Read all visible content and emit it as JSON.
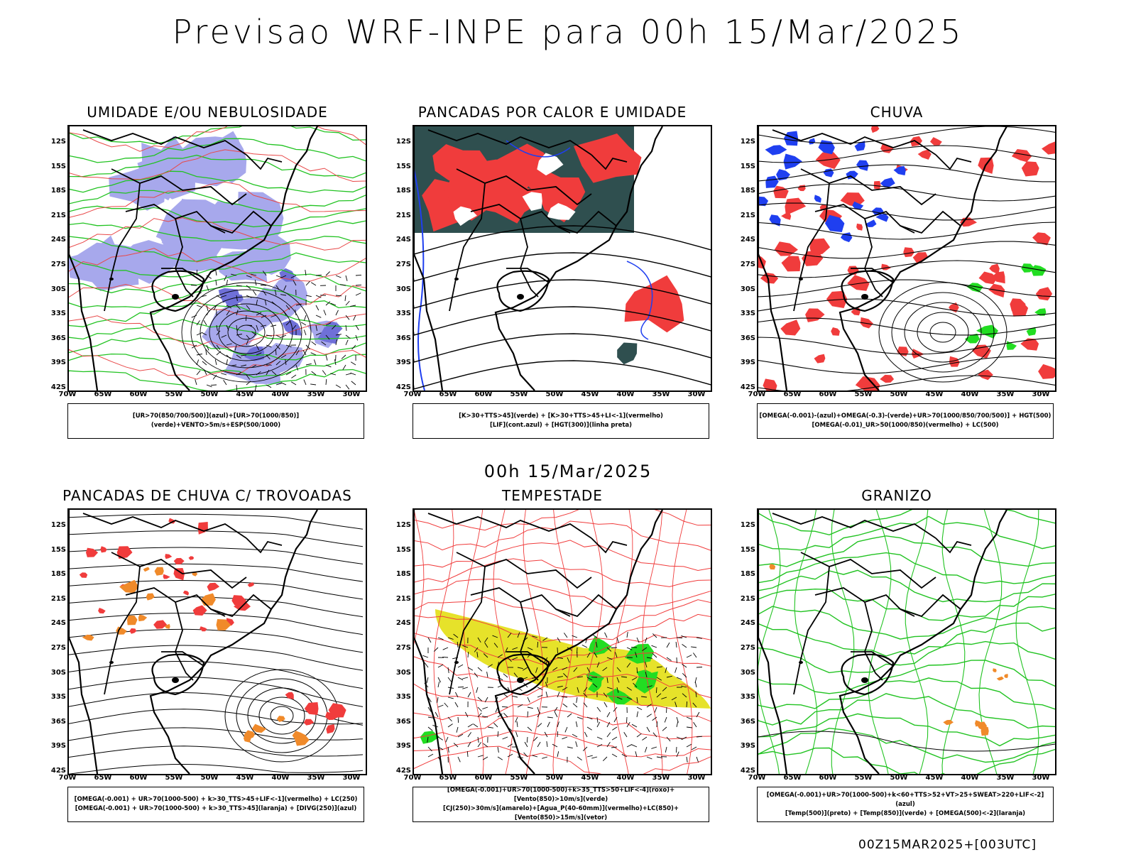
{
  "header": {
    "title": "Previsao WRF-INPE  para 00h 15/Mar/2025"
  },
  "subtitle": "00h 15/Mar/2025",
  "footer_stamp": "00Z15MAR2025+[003UTC]",
  "latitudes": [
    "12S",
    "15S",
    "18S",
    "21S",
    "24S",
    "27S",
    "30S",
    "33S",
    "36S",
    "39S",
    "42S"
  ],
  "longitudes": [
    "70W",
    "65W",
    "60W",
    "55W",
    "50W",
    "45W",
    "40W",
    "35W",
    "30W"
  ],
  "panels": [
    {
      "title": "UMIDADE E/OU NEBULOSIDADE",
      "legend": [
        "[UR>70(850/700/500)](azul)+[UR>70(1000/850)](verde)+VENTO>5m/s+ESP(500/1000)"
      ],
      "colors": {
        "fill_a": "#a7a8ec",
        "fill_b": "#6f70d8",
        "line_a": "#22c322",
        "line_b": "#e84848"
      }
    },
    {
      "title": "PANCADAS POR CALOR E UMIDADE",
      "legend": [
        "[K>30+TTS>45](verde) + [K>30+TTS>45+LI<-1](vermelho)",
        "[LIF](cont.azul) + [HGT(300)](linha preta)"
      ],
      "colors": {
        "fill_a": "#2f4f4f",
        "fill_b": "#f03c3c",
        "line_a": "#1f3ff0"
      }
    },
    {
      "title": "CHUVA",
      "legend": [
        "[OMEGA(-0.001)-(azul)+OMEGA(-0.3)-(verde)+UR>70(1000/850/700/500)] + HGT(500)",
        "[OMEGA(-0.01)_UR>50(1000/850)(vermelho) + LC(500)"
      ],
      "colors": {
        "fill_a": "#f03c3c",
        "fill_b": "#1f3ff0",
        "fill_c": "#22dd22"
      }
    },
    {
      "title": "PANCADAS DE CHUVA C/ TROVOADAS",
      "legend": [
        "[OMEGA(-0.001) + UR>70(1000-500) + k>30_TTS>45+LIF<-1](vermelho) + LC(250)",
        "[OMEGA(-0.001) + UR>70(1000-500) + k>30_TTS>45](laranja) + [DIVG(250)](azul)"
      ],
      "colors": {
        "fill_a": "#f03c3c",
        "fill_b": "#f08a2a"
      }
    },
    {
      "title": "TEMPESTADE",
      "legend": [
        "[OMEGA(-0.001)+UR>70(1000-500)+k>35_TTS>50+LIF<-4](roxo)+[Vento(850)>10m/s](verde)",
        "[CJ(250)>30m/s](amarelo)+[Agua_P(40-60mm)](vermelho)+LC(850)+[Vento(850)>15m/s](vetor)"
      ],
      "colors": {
        "fill_a": "#e6e22a",
        "fill_b": "#22dd22",
        "line_a": "#f03c3c"
      }
    },
    {
      "title": "GRANIZO",
      "legend": [
        "[OMEGA(-0.001)+UR>70(1000-500)+k<60+TTS>52+VT>25+SWEAT>220+LIF<-2](azul)",
        "[Temp(500)](preto) + [Temp(850)](verde) + [OMEGA(500)<-2](laranja)"
      ],
      "colors": {
        "line_a": "#22c322",
        "fill_a": "#f08a2a"
      }
    }
  ]
}
